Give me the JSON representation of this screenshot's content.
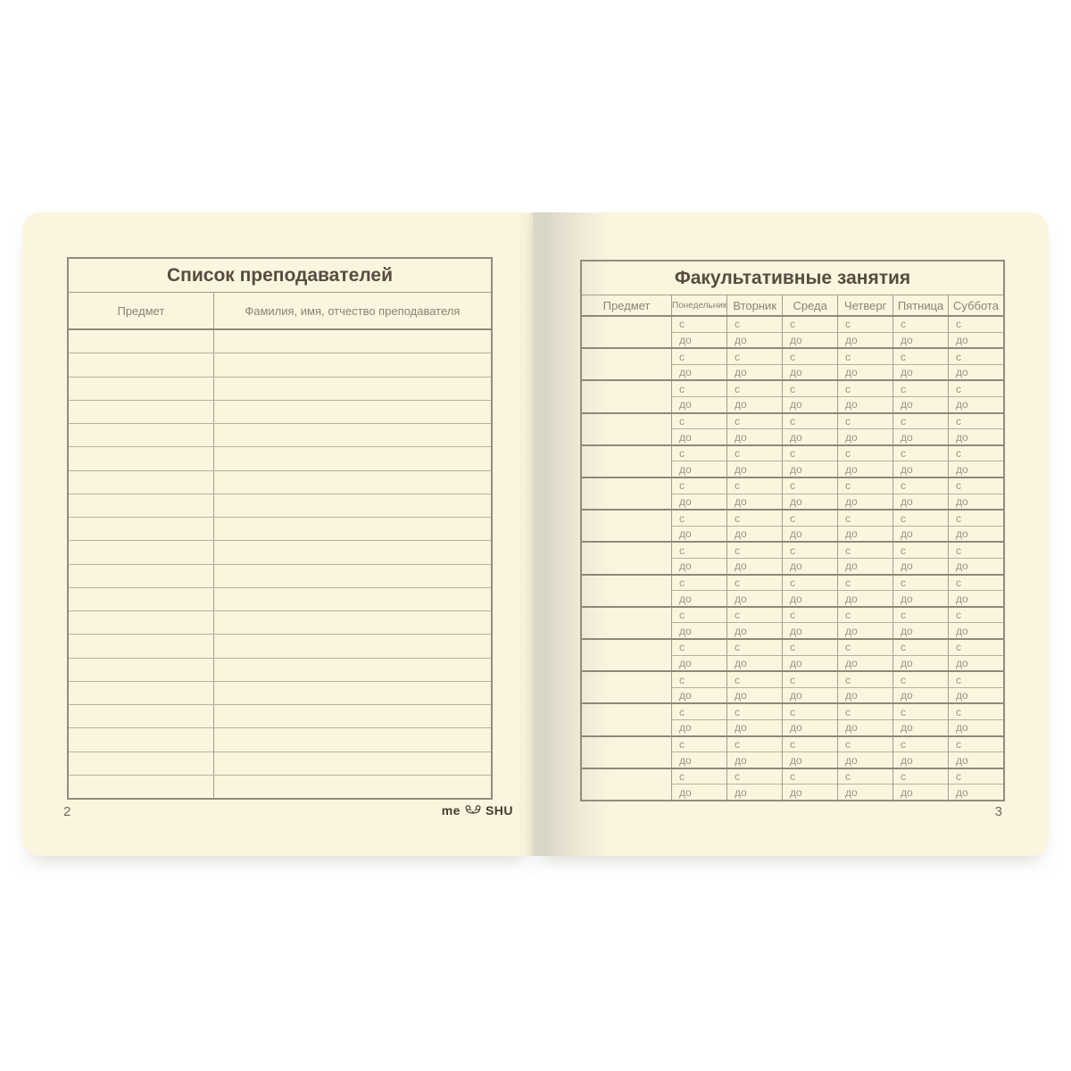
{
  "left_page": {
    "title": "Список преподавателей",
    "header": {
      "subject": "Предмет",
      "teacher_name": "Фамилия, имя, отчество преподавателя"
    },
    "empty_row_count": 20,
    "page_number": "2",
    "brand_logo": {
      "left_text": "me",
      "right_text": "SHU",
      "icon": "bear-face"
    }
  },
  "right_page": {
    "title": "Факультативные занятия",
    "header": {
      "subject": "Предмет",
      "days": [
        "Понедельник",
        "Вторник",
        "Среда",
        "Четверг",
        "Пятница",
        "Суббота"
      ]
    },
    "time_labels": {
      "from": "с",
      "to": "до"
    },
    "subject_row_count": 15,
    "page_number": "3"
  },
  "colors": {
    "page_background": "#fbf5df",
    "gutter_shadow": "#d9d5c6",
    "border_dark": "#8f8879",
    "border_light": "#b7b09f",
    "title_text": "#564c40",
    "header_text": "#8a8273",
    "cell_text": "#9c9384",
    "page_number_text": "#6f675a",
    "logo_text": "#453c31"
  }
}
